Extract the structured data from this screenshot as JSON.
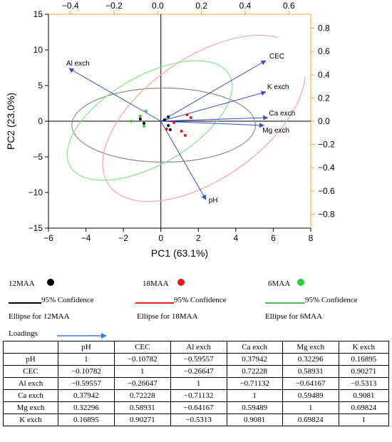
{
  "chart_data": {
    "type": "scatter",
    "title": "",
    "xlabel": "PC1 (63.1%)",
    "ylabel": "PC2 (23.0%)",
    "xlim": [
      -6,
      8
    ],
    "ylim": [
      -15,
      15
    ],
    "xticks": [
      "−6",
      "−4",
      "−2",
      "0",
      "2",
      "4",
      "6",
      "8"
    ],
    "yticks": [
      "15",
      "10",
      "5",
      "0",
      "−5",
      "−10",
      "−15"
    ],
    "top_axis": {
      "lim": [
        -0.5,
        0.7
      ],
      "ticks": [
        "−0.4",
        "−0.2",
        "0.0",
        "0.2",
        "0.4",
        "0.6"
      ],
      "values": [
        -0.4,
        -0.2,
        0,
        0.2,
        0.4,
        0.6
      ]
    },
    "right_axis": {
      "lim": [
        -0.92,
        0.92
      ],
      "ticks": [
        "0.8",
        "0.6",
        "0.4",
        "0.2",
        "0.0",
        "−0.2",
        "−0.4",
        "−0.6",
        "−0.8"
      ],
      "values": [
        0.8,
        0.6,
        0.4,
        0.2,
        0,
        -0.2,
        -0.4,
        -0.6,
        -0.8
      ]
    },
    "axis_color": "#f5a623",
    "series": [
      {
        "name": "12MAA",
        "color": "#000000",
        "points": [
          [
            -1.1,
            0.3
          ],
          [
            -0.9,
            -0.3
          ],
          [
            0.2,
            0.2
          ],
          [
            0.4,
            0.6
          ],
          [
            0.4,
            -0.6
          ],
          [
            0.5,
            -1.2
          ]
        ]
      },
      {
        "name": "18MAA",
        "color": "#e41a1c",
        "points": [
          [
            1.4,
            0.9
          ],
          [
            1.6,
            0.5
          ],
          [
            0.7,
            -0.2
          ],
          [
            0.3,
            -1.1
          ],
          [
            1.1,
            -1.4
          ],
          [
            1.3,
            -2.0
          ]
        ]
      },
      {
        "name": "6MAA",
        "color": "#2ecc40",
        "points": [
          [
            -0.8,
            1.4
          ],
          [
            -1.1,
            0.7
          ],
          [
            -1.6,
            0.0
          ],
          [
            -0.9,
            -0.7
          ]
        ]
      }
    ],
    "ellipses": [
      {
        "name": "95% Confidence Ellipse for 12MAA",
        "color": "#8c8c8c",
        "cx": 0.15,
        "cy": -0.55,
        "rx": 4.9,
        "ry": 5.2,
        "angle": 0
      },
      {
        "name": "95% Confidence Ellipse for 18MAA",
        "color": "#f4a6a6",
        "cx": 2.3,
        "cy": 0.4,
        "rx": 6.2,
        "ry": 8.5,
        "angle": 35
      },
      {
        "name": "95% Confidence Ellipse for 6MAA",
        "color": "#8fe08f",
        "cx": -0.6,
        "cy": 0.1,
        "rx": 4.9,
        "ry": 6.2,
        "angle": 30
      }
    ],
    "loading_vectors": [
      {
        "label": "CEC",
        "x": 5.6,
        "y": 8.5
      },
      {
        "label": "K exch",
        "x": 5.6,
        "y": 4.1
      },
      {
        "label": "Ca exch",
        "x": 5.7,
        "y": 0.5
      },
      {
        "label": "Mg exch",
        "x": 5.5,
        "y": -0.6
      },
      {
        "label": "Al exch",
        "x": -4.9,
        "y": 7.4
      },
      {
        "label": "pH",
        "x": 2.4,
        "y": -11.0
      }
    ],
    "vector_color": "#3b4cc0"
  },
  "legend": {
    "items": [
      {
        "name": "12MAA",
        "color": "#000000"
      },
      {
        "name": "18MAA",
        "color": "#e41a1c"
      },
      {
        "name": "6MAA",
        "color": "#2ecc40"
      }
    ],
    "confidence_label": "95% Confidence",
    "ellipse_labels": [
      "Ellipse for 12MAA",
      "Ellipse for 18MAA",
      "Ellipse for 6MAA"
    ],
    "line_colors": [
      "#000000",
      "#e41a1c",
      "#5cb85c"
    ],
    "loadings_label": "Loadings",
    "loadings_color": "#3a7bd5"
  },
  "table": {
    "header": [
      "",
      "pH",
      "CEC",
      "Al exch",
      "Ca exch",
      "Mg exch",
      "K exch"
    ],
    "rows": [
      [
        "pH",
        "1",
        "−0.10782",
        "−0.59557",
        "0.37942",
        "0.32296",
        "0.16895"
      ],
      [
        "CEC",
        "−0.10782",
        "1",
        "−0.26647",
        "0.72228",
        "0.58931",
        "0.90271"
      ],
      [
        "Al exch",
        "−0.59557",
        "−0.26647",
        "1",
        "−0.71132",
        "−0.64167",
        "−0.5313"
      ],
      [
        "Ca exch",
        "0.37942",
        "0.72228",
        "−0.71132",
        "1",
        "0.59489",
        "0.9081"
      ],
      [
        "Mg exch",
        "0.32296",
        "0.58931",
        "−0.64167",
        "0.59489",
        "1",
        "0.69824"
      ],
      [
        "K exch",
        "0.16895",
        "0.90271",
        "−0.5313",
        "0.9081",
        "0.69824",
        "1"
      ]
    ]
  }
}
